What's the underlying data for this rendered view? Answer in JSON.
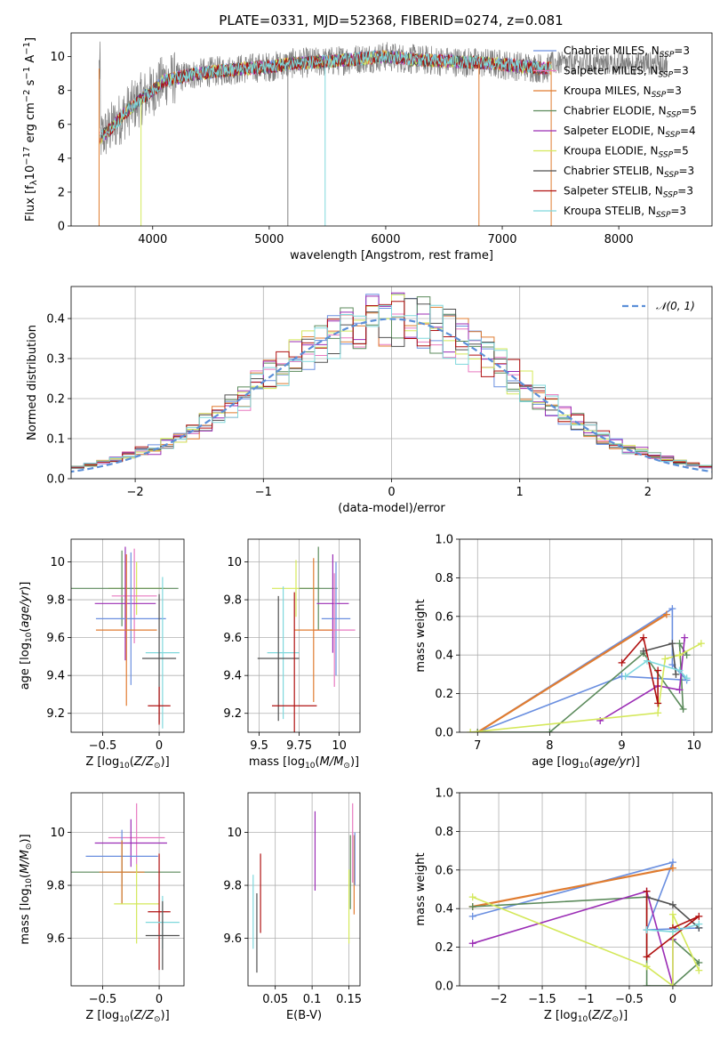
{
  "title": "PLATE=0331, MJD=52368, FIBERID=0274, z=0.081",
  "colors": {
    "Chabrier MILES": "#6a8fe0",
    "Salpeter MILES": "#e879c0",
    "Kroupa MILES": "#e07c30",
    "Chabrier ELODIE": "#5b8a5b",
    "Salpeter ELODIE": "#9b2db5",
    "Kroupa ELODIE": "#d4e85a",
    "Chabrier STELIB": "#505050",
    "Salpeter STELIB": "#b01010",
    "Kroupa STELIB": "#7fd8dc",
    "Normal": "#5b8fd8"
  },
  "chart_data": [
    {
      "id": "spectrum",
      "type": "line",
      "title": "PLATE=0331, MJD=52368, FIBERID=0274, z=0.081",
      "xlabel": "wavelength [Angstrom, rest frame]",
      "ylabel": "Flux [f_λ 10^-17 erg cm^-2 s^-1 A^-1]",
      "xlim": [
        3300,
        8800
      ],
      "ylim": [
        0,
        11.4
      ],
      "xticks": [
        4000,
        5000,
        6000,
        7000,
        8000
      ],
      "yticks": [
        0,
        2,
        4,
        6,
        8,
        10
      ],
      "legend_position": "right",
      "legend": [
        "Chabrier MILES, N_SSP=3",
        "Salpeter MILES, N_SSP=3",
        "Kroupa MILES, N_SSP=3",
        "Chabrier ELODIE, N_SSP=5",
        "Salpeter ELODIE, N_SSP=4",
        "Kroupa ELODIE, N_SSP=5",
        "Chabrier STELIB, N_SSP=3",
        "Salpeter STELIB, N_SSP=3",
        "Kroupa STELIB, N_SSP=3"
      ],
      "model_continuum": {
        "x": [
          3550,
          3620,
          3700,
          3800,
          3900,
          4000,
          4100,
          4300,
          4500,
          4800,
          5000,
          5200,
          5500,
          5800,
          6000,
          6300,
          6600,
          6900,
          7200,
          7400
        ],
        "y": [
          5.2,
          5.6,
          6.2,
          6.9,
          7.5,
          8.0,
          8.6,
          8.9,
          9.1,
          9.3,
          9.4,
          9.6,
          9.7,
          9.9,
          10.0,
          9.8,
          9.7,
          9.6,
          9.4,
          9.3
        ]
      },
      "data_range": [
        3540,
        8420
      ]
    },
    {
      "id": "residuals",
      "type": "histogram",
      "xlabel": "(data-model)/error",
      "ylabel": "Normed distribution",
      "xlim": [
        -2.5,
        2.5
      ],
      "ylim": [
        0,
        0.48
      ],
      "xticks": [
        -2,
        -1,
        0,
        1,
        2
      ],
      "yticks": [
        0.0,
        0.1,
        0.2,
        0.3,
        0.4
      ],
      "legend": "N(0,1)",
      "legend_position": "upper right",
      "gaussian": {
        "mean": 0,
        "sigma": 1
      },
      "bin_width": 0.1
    },
    {
      "id": "age_vs_Z",
      "type": "errorbar",
      "xlabel": "Z [log10(Z/Z⊙)]",
      "ylabel": "age [log10(age/yr)]",
      "xlim": [
        -0.78,
        0.22
      ],
      "ylim": [
        9.1,
        10.12
      ],
      "xticks": [
        -0.5,
        0.0
      ],
      "yticks": [
        9.2,
        9.4,
        9.6,
        9.8,
        10.0
      ],
      "points": [
        {
          "model": "Kroupa ELODIE",
          "x": -0.2,
          "xerr": 0.25,
          "y": 9.86,
          "yerr": 0.14
        },
        {
          "model": "Chabrier ELODIE",
          "x": -0.33,
          "xerr": 0.5,
          "y": 9.86,
          "yerr": 0.2
        },
        {
          "model": "Salpeter MILES",
          "x": -0.22,
          "xerr": 0.2,
          "y": 9.82,
          "yerr": 0.25
        },
        {
          "model": "Salpeter ELODIE",
          "x": -0.3,
          "xerr": 0.27,
          "y": 9.78,
          "yerr": 0.3
        },
        {
          "model": "Chabrier MILES",
          "x": -0.25,
          "xerr": 0.31,
          "y": 9.7,
          "yerr": 0.35
        },
        {
          "model": "Kroupa MILES",
          "x": -0.29,
          "xerr": 0.27,
          "y": 9.64,
          "yerr": 0.4
        },
        {
          "model": "Kroupa STELIB",
          "x": 0.03,
          "xerr": 0.15,
          "y": 9.52,
          "yerr": 0.4
        },
        {
          "model": "Chabrier STELIB",
          "x": 0.0,
          "xerr": 0.15,
          "y": 9.49,
          "yerr": 0.34
        },
        {
          "model": "Salpeter STELIB",
          "x": 0.0,
          "xerr": 0.1,
          "y": 9.24,
          "yerr": 0.1
        }
      ]
    },
    {
      "id": "age_vs_mass",
      "type": "errorbar",
      "xlabel": "mass [log10(M/M⊙)]",
      "ylabel": "",
      "xlim": [
        9.43,
        10.13
      ],
      "ylim": [
        9.1,
        10.12
      ],
      "xticks": [
        9.5,
        9.75,
        10.0
      ],
      "yticks": [
        9.2,
        9.4,
        9.6,
        9.8,
        10.0
      ],
      "points": [
        {
          "model": "Kroupa ELODIE",
          "x": 9.73,
          "xerr": 0.15,
          "y": 9.86,
          "yerr": 0.15
        },
        {
          "model": "Chabrier ELODIE",
          "x": 9.87,
          "xerr": 0.12,
          "y": 9.86,
          "yerr": 0.22
        },
        {
          "model": "Salpeter ELODIE",
          "x": 9.96,
          "xerr": 0.1,
          "y": 9.78,
          "yerr": 0.26
        },
        {
          "model": "Chabrier MILES",
          "x": 9.98,
          "xerr": 0.09,
          "y": 9.7,
          "yerr": 0.3
        },
        {
          "model": "Salpeter MILES",
          "x": 9.97,
          "xerr": 0.13,
          "y": 9.64,
          "yerr": 0.3
        },
        {
          "model": "Kroupa MILES",
          "x": 9.84,
          "xerr": 0.12,
          "y": 9.64,
          "yerr": 0.38
        },
        {
          "model": "Kroupa STELIB",
          "x": 9.65,
          "xerr": 0.1,
          "y": 9.52,
          "yerr": 0.35
        },
        {
          "model": "Chabrier STELIB",
          "x": 9.62,
          "xerr": 0.13,
          "y": 9.49,
          "yerr": 0.33
        },
        {
          "model": "Salpeter STELIB",
          "x": 9.72,
          "xerr": 0.14,
          "y": 9.24,
          "yerr": 0.6
        }
      ]
    },
    {
      "id": "weight_vs_age",
      "type": "line",
      "xlabel": "age [log10(age/yr)]",
      "ylabel": "mass weight",
      "xlim": [
        6.75,
        10.25
      ],
      "ylim": [
        0,
        1
      ],
      "xticks": [
        7,
        8,
        9,
        10
      ],
      "yticks": [
        0.0,
        0.2,
        0.4,
        0.6,
        0.8,
        1.0
      ],
      "series": [
        {
          "model": "Chabrier MILES",
          "x": [
            7.0,
            9.7,
            9.7,
            9.9,
            9.0,
            7.0
          ],
          "y": [
            0.0,
            0.64,
            0.35,
            0.27,
            0.29,
            0.0
          ]
        },
        {
          "model": "Kroupa MILES",
          "x": [
            7.0,
            9.62,
            7.0
          ],
          "y": [
            0.0,
            0.61,
            0.0
          ]
        },
        {
          "model": "Chabrier ELODIE",
          "x": [
            7.0,
            8.0,
            9.3,
            9.85,
            9.8,
            9.9
          ],
          "y": [
            0.0,
            0.0,
            0.41,
            0.12,
            0.46,
            0.4
          ]
        },
        {
          "model": "Salpeter ELODIE",
          "x": [
            8.7,
            9.5,
            9.8,
            9.87
          ],
          "y": [
            0.06,
            0.24,
            0.22,
            0.49
          ]
        },
        {
          "model": "Kroupa ELODIE",
          "x": [
            6.9,
            9.5,
            9.6,
            9.8,
            10.1
          ],
          "y": [
            0.0,
            0.1,
            0.38,
            0.4,
            0.46
          ]
        },
        {
          "model": "Chabrier STELIB",
          "x": [
            9.3,
            9.7,
            9.75
          ],
          "y": [
            0.42,
            0.46,
            0.3
          ]
        },
        {
          "model": "Salpeter STELIB",
          "x": [
            9.0,
            9.3,
            9.5,
            9.5
          ],
          "y": [
            0.36,
            0.49,
            0.15,
            0.32
          ]
        },
        {
          "model": "Kroupa STELIB",
          "x": [
            9.05,
            9.35,
            9.8,
            9.9
          ],
          "y": [
            0.29,
            0.37,
            0.32,
            0.28
          ]
        }
      ]
    },
    {
      "id": "mass_vs_Z",
      "type": "errorbar",
      "xlabel": "Z [log10(Z/Z⊙)]",
      "ylabel": "mass [log10(M/M⊙)]",
      "xlim": [
        -0.78,
        0.22
      ],
      "ylim": [
        9.42,
        10.15
      ],
      "xticks": [
        -0.5,
        0.0
      ],
      "yticks": [
        9.6,
        9.8,
        10.0
      ],
      "points": [
        {
          "model": "Salpeter MILES",
          "x": -0.2,
          "xerr": 0.25,
          "y": 9.98,
          "yerr": 0.13
        },
        {
          "model": "Salpeter ELODIE",
          "x": -0.25,
          "xerr": 0.32,
          "y": 9.96,
          "yerr": 0.09
        },
        {
          "model": "Chabrier MILES",
          "x": -0.33,
          "xerr": 0.32,
          "y": 9.91,
          "yerr": 0.1
        },
        {
          "model": "Chabrier ELODIE",
          "x": -0.33,
          "xerr": 0.52,
          "y": 9.85,
          "yerr": 0.12
        },
        {
          "model": "Kroupa MILES",
          "x": -0.33,
          "xerr": 0.2,
          "y": 9.85,
          "yerr": 0.12
        },
        {
          "model": "Kroupa ELODIE",
          "x": -0.2,
          "xerr": 0.2,
          "y": 9.73,
          "yerr": 0.15
        },
        {
          "model": "Salpeter STELIB",
          "x": 0.0,
          "xerr": 0.1,
          "y": 9.7,
          "yerr": 0.22
        },
        {
          "model": "Kroupa STELIB",
          "x": 0.03,
          "xerr": 0.15,
          "y": 9.66,
          "yerr": 0.1
        },
        {
          "model": "Chabrier STELIB",
          "x": 0.03,
          "xerr": 0.15,
          "y": 9.61,
          "yerr": 0.13
        }
      ]
    },
    {
      "id": "mass_vs_ebv",
      "type": "errorbar",
      "xlabel": "E(B-V)",
      "ylabel": "",
      "xlim": [
        0.013,
        0.165
      ],
      "ylim": [
        9.42,
        10.15
      ],
      "xticks": [
        0.05,
        0.1,
        0.15
      ],
      "yticks": [
        9.6,
        9.8,
        10.0
      ],
      "points": [
        {
          "model": "Kroupa STELIB",
          "x": 0.02,
          "y": 9.7,
          "yerr": 0.14
        },
        {
          "model": "Chabrier STELIB",
          "x": 0.025,
          "y": 9.62,
          "yerr": 0.15
        },
        {
          "model": "Salpeter STELIB",
          "x": 0.03,
          "y": 9.77,
          "yerr": 0.15
        },
        {
          "model": "Salpeter ELODIE",
          "x": 0.104,
          "y": 9.93,
          "yerr": 0.15
        },
        {
          "model": "Kroupa ELODIE",
          "x": 0.15,
          "y": 9.72,
          "yerr": 0.14
        },
        {
          "model": "Chabrier ELODIE",
          "x": 0.152,
          "y": 9.85,
          "yerr": 0.14
        },
        {
          "model": "Salpeter MILES",
          "x": 0.155,
          "y": 9.96,
          "yerr": 0.15
        },
        {
          "model": "Kroupa MILES",
          "x": 0.157,
          "y": 9.84,
          "yerr": 0.15
        },
        {
          "model": "Chabrier MILES",
          "x": 0.158,
          "y": 9.9,
          "yerr": 0.1
        }
      ]
    },
    {
      "id": "weight_vs_Z",
      "type": "line",
      "xlabel": "Z [log10(Z/Z⊙)]",
      "ylabel": "mass weight",
      "xlim": [
        -2.45,
        0.45
      ],
      "ylim": [
        0,
        1
      ],
      "xticks": [
        -2.0,
        -1.5,
        -1.0,
        -0.5,
        0.0
      ],
      "yticks": [
        0.0,
        0.2,
        0.4,
        0.6,
        0.8,
        1.0
      ],
      "series": [
        {
          "model": "Chabrier MILES",
          "x": [
            -2.3,
            0.0,
            -0.3,
            0.3
          ],
          "y": [
            0.36,
            0.64,
            0.29,
            0.3
          ]
        },
        {
          "model": "Kroupa MILES",
          "x": [
            -2.3,
            0.0,
            -2.3
          ],
          "y": [
            0.41,
            0.61,
            0.41
          ]
        },
        {
          "model": "Chabrier ELODIE",
          "x": [
            -2.3,
            -0.3,
            -0.3,
            0.0,
            0.3,
            0.0
          ],
          "y": [
            0.41,
            0.46,
            0.0,
            0.0,
            0.12,
            0.24
          ]
        },
        {
          "model": "Salpeter ELODIE",
          "x": [
            -2.3,
            -0.3,
            0.0,
            0.0
          ],
          "y": [
            0.22,
            0.49,
            0.0,
            0.24
          ]
        },
        {
          "model": "Kroupa ELODIE",
          "x": [
            -2.3,
            -0.3,
            0.0,
            0.0,
            0.3
          ],
          "y": [
            0.46,
            0.1,
            0.0,
            0.37,
            0.08
          ]
        },
        {
          "model": "Chabrier STELIB",
          "x": [
            -0.3,
            0.0,
            0.3
          ],
          "y": [
            0.46,
            0.42,
            0.3
          ]
        },
        {
          "model": "Salpeter STELIB",
          "x": [
            -0.3,
            -0.3,
            0.3,
            0.0
          ],
          "y": [
            0.49,
            0.15,
            0.36,
            0.3
          ]
        },
        {
          "model": "Kroupa STELIB",
          "x": [
            -0.3,
            0.0,
            0.3
          ],
          "y": [
            0.29,
            0.28,
            0.32
          ]
        }
      ]
    }
  ]
}
